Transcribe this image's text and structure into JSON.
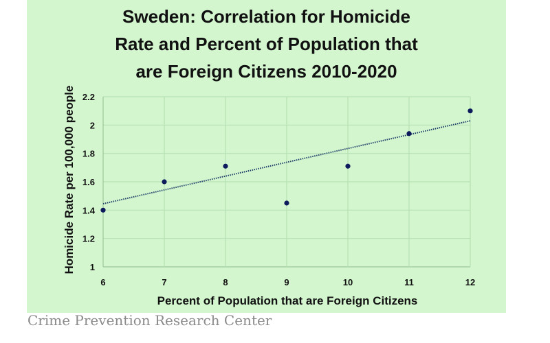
{
  "chart_data": {
    "type": "scatter",
    "title_lines": [
      "Sweden: Correlation for Homicide",
      "Rate and Percent of Population that",
      "are Foreign Citizens 2010-2020"
    ],
    "xlabel": "Percent of Population that are Foreign Citizens",
    "ylabel": "Homicide Rate per 100,000 people",
    "xlim": [
      6,
      12
    ],
    "ylim": [
      1,
      2.2
    ],
    "x_ticks": [
      "6",
      "7",
      "8",
      "9",
      "10",
      "11",
      "12"
    ],
    "y_ticks": [
      "1",
      "1.2",
      "1.4",
      "1.6",
      "1.8",
      "2",
      "2.2"
    ],
    "grid": true,
    "series": [
      {
        "name": "Sweden",
        "x": [
          6,
          7,
          8,
          9,
          10,
          11,
          12
        ],
        "y": [
          1.4,
          1.6,
          1.71,
          1.45,
          1.71,
          1.94,
          2.1
        ],
        "color": "#0d1a5c"
      }
    ],
    "trendline": {
      "type": "linear",
      "x": [
        6,
        12
      ],
      "y": [
        1.445,
        2.03
      ],
      "style": "dotted",
      "color": "#1a3a66"
    }
  },
  "footer": "Crime Prevention Research Center"
}
